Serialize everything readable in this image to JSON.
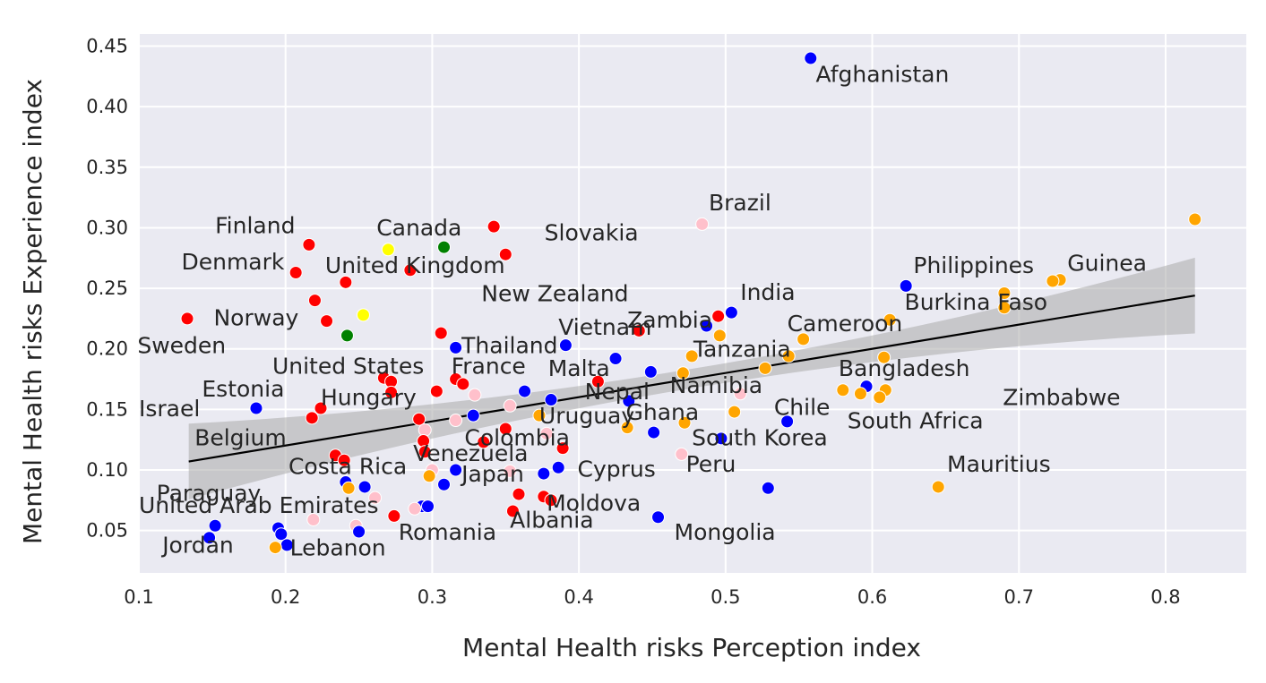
{
  "chart_data": {
    "type": "scatter",
    "title": "",
    "xlabel": "Mental Health risks Perception index",
    "ylabel": "Mental Health risks Experience index",
    "xlim": [
      0.1,
      0.855
    ],
    "ylim": [
      0.015,
      0.46
    ],
    "xticks": [
      "0.1",
      "0.2",
      "0.3",
      "0.4",
      "0.5",
      "0.6",
      "0.7",
      "0.8"
    ],
    "yticks": [
      "0.05",
      "0.10",
      "0.15",
      "0.20",
      "0.25",
      "0.30",
      "0.35",
      "0.40",
      "0.45"
    ],
    "grid": true,
    "background": "#eaeaf2",
    "colors": {
      "red": "#ff0000",
      "blue": "#0000ff",
      "orange": "#ffa500",
      "pink": "#ffc0cb",
      "green": "#008000",
      "yellow": "#ffff00"
    },
    "regression": {
      "x": [
        0.134,
        0.82
      ],
      "y": [
        0.107,
        0.244
      ],
      "color": "#000000",
      "band_color": "#a9a9a9"
    },
    "points": [
      {
        "x": 0.558,
        "y": 0.44,
        "c": "blue"
      },
      {
        "x": 0.82,
        "y": 0.307,
        "c": "orange"
      },
      {
        "x": 0.484,
        "y": 0.303,
        "c": "pink"
      },
      {
        "x": 0.342,
        "y": 0.301,
        "c": "red"
      },
      {
        "x": 0.216,
        "y": 0.286,
        "c": "red"
      },
      {
        "x": 0.308,
        "y": 0.284,
        "c": "green"
      },
      {
        "x": 0.27,
        "y": 0.282,
        "c": "yellow"
      },
      {
        "x": 0.35,
        "y": 0.278,
        "c": "red"
      },
      {
        "x": 0.285,
        "y": 0.265,
        "c": "red"
      },
      {
        "x": 0.207,
        "y": 0.263,
        "c": "red"
      },
      {
        "x": 0.728,
        "y": 0.257,
        "c": "orange"
      },
      {
        "x": 0.723,
        "y": 0.256,
        "c": "orange"
      },
      {
        "x": 0.241,
        "y": 0.255,
        "c": "red"
      },
      {
        "x": 0.623,
        "y": 0.252,
        "c": "blue"
      },
      {
        "x": 0.69,
        "y": 0.246,
        "c": "orange"
      },
      {
        "x": 0.22,
        "y": 0.24,
        "c": "red"
      },
      {
        "x": 0.69,
        "y": 0.234,
        "c": "orange"
      },
      {
        "x": 0.504,
        "y": 0.23,
        "c": "blue"
      },
      {
        "x": 0.253,
        "y": 0.228,
        "c": "yellow"
      },
      {
        "x": 0.495,
        "y": 0.227,
        "c": "red"
      },
      {
        "x": 0.133,
        "y": 0.225,
        "c": "red"
      },
      {
        "x": 0.612,
        "y": 0.224,
        "c": "orange"
      },
      {
        "x": 0.228,
        "y": 0.223,
        "c": "red"
      },
      {
        "x": 0.487,
        "y": 0.219,
        "c": "blue"
      },
      {
        "x": 0.441,
        "y": 0.215,
        "c": "red"
      },
      {
        "x": 0.306,
        "y": 0.213,
        "c": "red"
      },
      {
        "x": 0.242,
        "y": 0.211,
        "c": "green"
      },
      {
        "x": 0.496,
        "y": 0.211,
        "c": "orange"
      },
      {
        "x": 0.553,
        "y": 0.208,
        "c": "orange"
      },
      {
        "x": 0.391,
        "y": 0.203,
        "c": "blue"
      },
      {
        "x": 0.316,
        "y": 0.201,
        "c": "blue"
      },
      {
        "x": 0.543,
        "y": 0.194,
        "c": "orange"
      },
      {
        "x": 0.477,
        "y": 0.194,
        "c": "orange"
      },
      {
        "x": 0.608,
        "y": 0.193,
        "c": "orange"
      },
      {
        "x": 0.425,
        "y": 0.192,
        "c": "blue"
      },
      {
        "x": 0.527,
        "y": 0.184,
        "c": "orange"
      },
      {
        "x": 0.449,
        "y": 0.181,
        "c": "blue"
      },
      {
        "x": 0.471,
        "y": 0.18,
        "c": "orange"
      },
      {
        "x": 0.267,
        "y": 0.176,
        "c": "red"
      },
      {
        "x": 0.316,
        "y": 0.175,
        "c": "red"
      },
      {
        "x": 0.272,
        "y": 0.173,
        "c": "red"
      },
      {
        "x": 0.413,
        "y": 0.173,
        "c": "red"
      },
      {
        "x": 0.321,
        "y": 0.171,
        "c": "red"
      },
      {
        "x": 0.596,
        "y": 0.169,
        "c": "blue"
      },
      {
        "x": 0.58,
        "y": 0.166,
        "c": "orange"
      },
      {
        "x": 0.609,
        "y": 0.166,
        "c": "orange"
      },
      {
        "x": 0.303,
        "y": 0.165,
        "c": "red"
      },
      {
        "x": 0.363,
        "y": 0.165,
        "c": "blue"
      },
      {
        "x": 0.272,
        "y": 0.164,
        "c": "red"
      },
      {
        "x": 0.592,
        "y": 0.163,
        "c": "orange"
      },
      {
        "x": 0.51,
        "y": 0.163,
        "c": "pink"
      },
      {
        "x": 0.329,
        "y": 0.162,
        "c": "pink"
      },
      {
        "x": 0.605,
        "y": 0.16,
        "c": "orange"
      },
      {
        "x": 0.381,
        "y": 0.158,
        "c": "blue"
      },
      {
        "x": 0.434,
        "y": 0.157,
        "c": "blue"
      },
      {
        "x": 0.353,
        "y": 0.153,
        "c": "pink"
      },
      {
        "x": 0.18,
        "y": 0.151,
        "c": "blue"
      },
      {
        "x": 0.224,
        "y": 0.151,
        "c": "red"
      },
      {
        "x": 0.506,
        "y": 0.148,
        "c": "orange"
      },
      {
        "x": 0.373,
        "y": 0.145,
        "c": "orange"
      },
      {
        "x": 0.328,
        "y": 0.145,
        "c": "blue"
      },
      {
        "x": 0.218,
        "y": 0.143,
        "c": "red"
      },
      {
        "x": 0.291,
        "y": 0.142,
        "c": "red"
      },
      {
        "x": 0.316,
        "y": 0.141,
        "c": "pink"
      },
      {
        "x": 0.542,
        "y": 0.14,
        "c": "blue"
      },
      {
        "x": 0.472,
        "y": 0.139,
        "c": "orange"
      },
      {
        "x": 0.433,
        "y": 0.135,
        "c": "orange"
      },
      {
        "x": 0.35,
        "y": 0.134,
        "c": "red"
      },
      {
        "x": 0.295,
        "y": 0.133,
        "c": "pink"
      },
      {
        "x": 0.451,
        "y": 0.131,
        "c": "blue"
      },
      {
        "x": 0.378,
        "y": 0.13,
        "c": "pink"
      },
      {
        "x": 0.497,
        "y": 0.126,
        "c": "blue"
      },
      {
        "x": 0.294,
        "y": 0.124,
        "c": "red"
      },
      {
        "x": 0.335,
        "y": 0.123,
        "c": "red"
      },
      {
        "x": 0.389,
        "y": 0.118,
        "c": "red"
      },
      {
        "x": 0.295,
        "y": 0.115,
        "c": "red"
      },
      {
        "x": 0.47,
        "y": 0.113,
        "c": "pink"
      },
      {
        "x": 0.234,
        "y": 0.112,
        "c": "red"
      },
      {
        "x": 0.24,
        "y": 0.108,
        "c": "red"
      },
      {
        "x": 0.386,
        "y": 0.102,
        "c": "blue"
      },
      {
        "x": 0.3,
        "y": 0.1,
        "c": "pink"
      },
      {
        "x": 0.316,
        "y": 0.1,
        "c": "blue"
      },
      {
        "x": 0.353,
        "y": 0.099,
        "c": "pink"
      },
      {
        "x": 0.376,
        "y": 0.097,
        "c": "blue"
      },
      {
        "x": 0.298,
        "y": 0.095,
        "c": "orange"
      },
      {
        "x": 0.241,
        "y": 0.09,
        "c": "blue"
      },
      {
        "x": 0.308,
        "y": 0.088,
        "c": "blue"
      },
      {
        "x": 0.254,
        "y": 0.086,
        "c": "blue"
      },
      {
        "x": 0.243,
        "y": 0.085,
        "c": "orange"
      },
      {
        "x": 0.529,
        "y": 0.085,
        "c": "blue"
      },
      {
        "x": 0.645,
        "y": 0.086,
        "c": "orange"
      },
      {
        "x": 0.359,
        "y": 0.08,
        "c": "red"
      },
      {
        "x": 0.376,
        "y": 0.078,
        "c": "red"
      },
      {
        "x": 0.261,
        "y": 0.077,
        "c": "pink"
      },
      {
        "x": 0.381,
        "y": 0.075,
        "c": "red"
      },
      {
        "x": 0.293,
        "y": 0.07,
        "c": "blue"
      },
      {
        "x": 0.297,
        "y": 0.07,
        "c": "blue"
      },
      {
        "x": 0.288,
        "y": 0.068,
        "c": "pink"
      },
      {
        "x": 0.355,
        "y": 0.066,
        "c": "red"
      },
      {
        "x": 0.274,
        "y": 0.062,
        "c": "red"
      },
      {
        "x": 0.454,
        "y": 0.061,
        "c": "blue"
      },
      {
        "x": 0.219,
        "y": 0.059,
        "c": "pink"
      },
      {
        "x": 0.152,
        "y": 0.054,
        "c": "blue"
      },
      {
        "x": 0.248,
        "y": 0.054,
        "c": "pink"
      },
      {
        "x": 0.195,
        "y": 0.052,
        "c": "blue"
      },
      {
        "x": 0.25,
        "y": 0.049,
        "c": "blue"
      },
      {
        "x": 0.197,
        "y": 0.047,
        "c": "blue"
      },
      {
        "x": 0.148,
        "y": 0.044,
        "c": "blue"
      },
      {
        "x": 0.201,
        "y": 0.038,
        "c": "blue"
      },
      {
        "x": 0.193,
        "y": 0.036,
        "c": "orange"
      }
    ],
    "annotations": [
      {
        "text": "Afghanistan",
        "x": 0.5615,
        "y": 0.4205
      },
      {
        "text": "Brazil",
        "x": 0.4885,
        "y": 0.3145
      },
      {
        "text": "Slovakia",
        "x": 0.3765,
        "y": 0.2895
      },
      {
        "text": "Finland",
        "x": 0.152,
        "y": 0.2955
      },
      {
        "text": "Canada",
        "x": 0.262,
        "y": 0.2935
      },
      {
        "text": "Denmark",
        "x": 0.129,
        "y": 0.2655
      },
      {
        "text": "United Kingdom",
        "x": 0.227,
        "y": 0.2625
      },
      {
        "text": "Philippines",
        "x": 0.628,
        "y": 0.2625
      },
      {
        "text": "Guinea",
        "x": 0.733,
        "y": 0.2645
      },
      {
        "text": "New Zealand",
        "x": 0.3335,
        "y": 0.2395
      },
      {
        "text": "India",
        "x": 0.51,
        "y": 0.2405
      },
      {
        "text": "Burkina Faso",
        "x": 0.622,
        "y": 0.2325
      },
      {
        "text": "Norway",
        "x": 0.151,
        "y": 0.2195
      },
      {
        "text": "Zambia",
        "x": 0.433,
        "y": 0.2175
      },
      {
        "text": "Vietnam",
        "x": 0.386,
        "y": 0.2115
      },
      {
        "text": "Cameroon",
        "x": 0.542,
        "y": 0.2145
      },
      {
        "text": "Thailand",
        "x": 0.32,
        "y": 0.1965
      },
      {
        "text": "Sweden",
        "x": 0.099,
        "y": 0.1965
      },
      {
        "text": "Tanzania",
        "x": 0.478,
        "y": 0.1935
      },
      {
        "text": "United States",
        "x": 0.191,
        "y": 0.1795
      },
      {
        "text": "France",
        "x": 0.313,
        "y": 0.1795
      },
      {
        "text": "Malta",
        "x": 0.379,
        "y": 0.1775
      },
      {
        "text": "Bangladesh",
        "x": 0.577,
        "y": 0.1775
      },
      {
        "text": "Estonia",
        "x": 0.143,
        "y": 0.1605
      },
      {
        "text": "Namibia",
        "x": 0.462,
        "y": 0.1635
      },
      {
        "text": "Nepal",
        "x": 0.404,
        "y": 0.1585
      },
      {
        "text": "Hungary",
        "x": 0.224,
        "y": 0.1535
      },
      {
        "text": "Zimbabwe",
        "x": 0.689,
        "y": 0.1535
      },
      {
        "text": "Israel",
        "x": 0.1,
        "y": 0.1445
      },
      {
        "text": "Chile",
        "x": 0.533,
        "y": 0.1455
      },
      {
        "text": "Ghana",
        "x": 0.432,
        "y": 0.1415
      },
      {
        "text": "Uruguay",
        "x": 0.373,
        "y": 0.1385
      },
      {
        "text": "South Africa",
        "x": 0.583,
        "y": 0.1345
      },
      {
        "text": "Belgium",
        "x": 0.138,
        "y": 0.1205
      },
      {
        "text": "Colombia",
        "x": 0.322,
        "y": 0.1205
      },
      {
        "text": "South Korea",
        "x": 0.477,
        "y": 0.1205
      },
      {
        "text": "Venezuela",
        "x": 0.287,
        "y": 0.1075
      },
      {
        "text": "Costa Rica",
        "x": 0.202,
        "y": 0.0965
      },
      {
        "text": "Peru",
        "x": 0.473,
        "y": 0.0985
      },
      {
        "text": "Mauritius",
        "x": 0.651,
        "y": 0.0985
      },
      {
        "text": "Cyprus",
        "x": 0.399,
        "y": 0.0945
      },
      {
        "text": "Japan",
        "x": 0.32,
        "y": 0.0905
      },
      {
        "text": "Paraguay",
        "x": 0.112,
        "y": 0.0745
      },
      {
        "text": "United Arab Emirates",
        "x": 0.1,
        "y": 0.0645
      },
      {
        "text": "Moldova",
        "x": 0.378,
        "y": 0.0665
      },
      {
        "text": "Albania",
        "x": 0.353,
        "y": 0.0525
      },
      {
        "text": "Romania",
        "x": 0.277,
        "y": 0.0425
      },
      {
        "text": "Mongolia",
        "x": 0.465,
        "y": 0.0425
      },
      {
        "text": "Jordan",
        "x": 0.116,
        "y": 0.0315
      },
      {
        "text": "Lebanon",
        "x": 0.203,
        "y": 0.0295
      }
    ]
  }
}
